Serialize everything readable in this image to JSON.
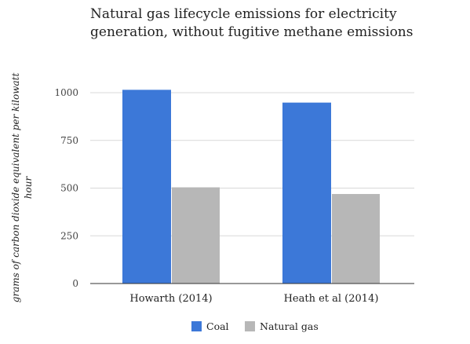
{
  "chart_data": {
    "type": "bar",
    "title_lines": [
      "Natural gas lifecycle emissions for electricity",
      "generation, without fugitive methane emissions"
    ],
    "xlabel": "",
    "ylabel_lines": [
      "grams of carbon dioxide equivalent per kilowatt",
      "hour"
    ],
    "categories": [
      "Howarth (2014)",
      "Heath et al (2014)"
    ],
    "series": [
      {
        "name": "Coal",
        "color": "#3c78d8",
        "values": [
          1015,
          948
        ]
      },
      {
        "name": "Natural gas",
        "color": "#b7b7b7",
        "values": [
          504,
          469
        ]
      }
    ],
    "ylim": [
      0,
      1000
    ],
    "yticks": [
      0,
      250,
      500,
      750,
      1000
    ],
    "grid": true,
    "legend_position": "bottom"
  }
}
